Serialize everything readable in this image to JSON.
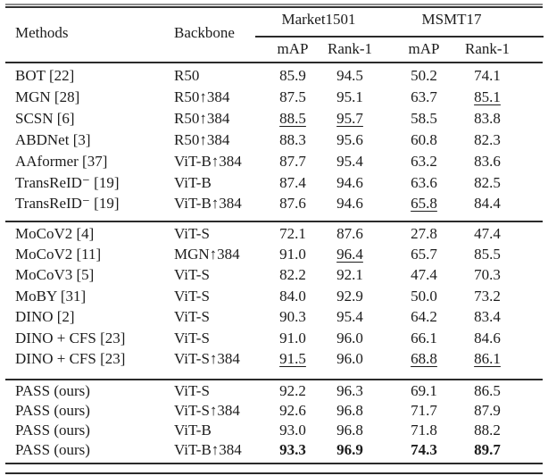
{
  "page": {
    "background": "#ffffff",
    "text_color": "#1c1c1c",
    "rule_color": "#2b2b2b"
  },
  "table": {
    "headers": {
      "methods": "Methods",
      "backbone": "Backbone",
      "group_market": "Market1501",
      "group_msmt": "MSMT17",
      "sub_headers": [
        "mAP",
        "Rank-1",
        "mAP",
        "Rank-1"
      ]
    },
    "sections": [
      {
        "rows": [
          {
            "method": "BOT [22]",
            "backbone": "R50",
            "values": [
              "85.9",
              "94.5",
              "50.2",
              "74.1"
            ],
            "underline": [],
            "bold": []
          },
          {
            "method": "MGN [28]",
            "backbone": "R50↑384",
            "values": [
              "87.5",
              "95.1",
              "63.7",
              "85.1"
            ],
            "underline": [
              3
            ],
            "bold": []
          },
          {
            "method": "SCSN [6]",
            "backbone": "R50↑384",
            "values": [
              "88.5",
              "95.7",
              "58.5",
              "83.8"
            ],
            "underline": [
              0,
              1
            ],
            "bold": []
          },
          {
            "method": "ABDNet [3]",
            "backbone": "R50↑384",
            "values": [
              "88.3",
              "95.6",
              "60.8",
              "82.3"
            ],
            "underline": [],
            "bold": []
          },
          {
            "method": "AAformer [37]",
            "backbone": "ViT-B↑384",
            "values": [
              "87.7",
              "95.4",
              "63.2",
              "83.6"
            ],
            "underline": [],
            "bold": []
          },
          {
            "method": "TransReID⁻ [19]",
            "backbone": "ViT-B",
            "values": [
              "87.4",
              "94.6",
              "63.6",
              "82.5"
            ],
            "underline": [],
            "bold": []
          },
          {
            "method": "TransReID⁻ [19]",
            "backbone": "ViT-B↑384",
            "values": [
              "87.6",
              "94.6",
              "65.8",
              "84.4"
            ],
            "underline": [
              2
            ],
            "bold": []
          }
        ]
      },
      {
        "rows": [
          {
            "method": "MoCoV2 [4]",
            "backbone": "ViT-S",
            "values": [
              "72.1",
              "87.6",
              "27.8",
              "47.4"
            ],
            "underline": [],
            "bold": []
          },
          {
            "method": "MoCoV2 [11]",
            "backbone": "MGN↑384",
            "values": [
              "91.0",
              "96.4",
              "65.7",
              "85.5"
            ],
            "underline": [
              1
            ],
            "bold": []
          },
          {
            "method": "MoCoV3 [5]",
            "backbone": "ViT-S",
            "values": [
              "82.2",
              "92.1",
              "47.4",
              "70.3"
            ],
            "underline": [],
            "bold": []
          },
          {
            "method": "MoBY [31]",
            "backbone": "ViT-S",
            "values": [
              "84.0",
              "92.9",
              "50.0",
              "73.2"
            ],
            "underline": [],
            "bold": []
          },
          {
            "method": "DINO [2]",
            "backbone": "ViT-S",
            "values": [
              "90.3",
              "95.4",
              "64.2",
              "83.4"
            ],
            "underline": [],
            "bold": []
          },
          {
            "method": "DINO + CFS [23]",
            "backbone": "ViT-S",
            "values": [
              "91.0",
              "96.0",
              "66.1",
              "84.6"
            ],
            "underline": [],
            "bold": []
          },
          {
            "method": "DINO + CFS [23]",
            "backbone": "ViT-S↑384",
            "values": [
              "91.5",
              "96.0",
              "68.8",
              "86.1"
            ],
            "underline": [
              0,
              2,
              3
            ],
            "bold": []
          }
        ]
      },
      {
        "rows": [
          {
            "method": "PASS (ours)",
            "backbone": "ViT-S",
            "values": [
              "92.2",
              "96.3",
              "69.1",
              "86.5"
            ],
            "underline": [],
            "bold": []
          },
          {
            "method": "PASS (ours)",
            "backbone": "ViT-S↑384",
            "values": [
              "92.6",
              "96.8",
              "71.7",
              "87.9"
            ],
            "underline": [],
            "bold": []
          },
          {
            "method": "PASS (ours)",
            "backbone": "ViT-B",
            "values": [
              "93.0",
              "96.8",
              "71.8",
              "88.2"
            ],
            "underline": [],
            "bold": []
          },
          {
            "method": "PASS (ours)",
            "backbone": "ViT-B↑384",
            "values": [
              "93.3",
              "96.9",
              "74.3",
              "89.7"
            ],
            "underline": [],
            "bold": [
              0,
              1,
              2,
              3
            ]
          }
        ]
      }
    ]
  }
}
